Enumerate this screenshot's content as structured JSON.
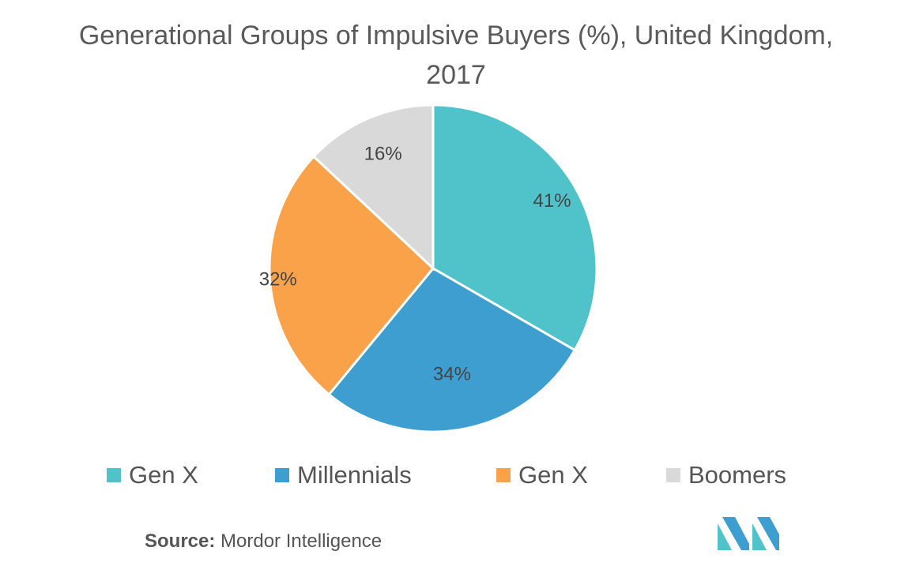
{
  "chart_data": {
    "type": "pie",
    "title": "Generational Groups of Impulsive Buyers (%), United Kingdom, 2017",
    "categories": [
      "Gen X",
      "Millennials",
      "Gen X",
      "Boomers"
    ],
    "values": [
      41,
      34,
      32,
      16
    ],
    "value_labels": [
      "41%",
      "34%",
      "32%",
      "16%"
    ],
    "colors": [
      "#4fc3c9",
      "#3e9ecf",
      "#f9a24a",
      "#d9d9d9"
    ],
    "legend_position": "bottom"
  },
  "source": {
    "label": "Source:",
    "text": "Mordor Intelligence"
  },
  "logo": {
    "icon": "mordor-intelligence-logo",
    "colors": [
      "#4fc3c9",
      "#3e9ecf"
    ]
  }
}
